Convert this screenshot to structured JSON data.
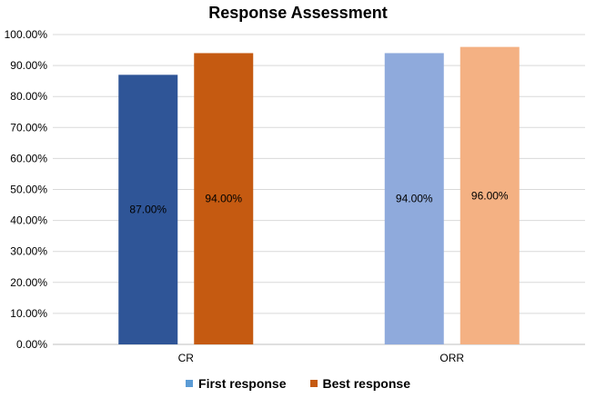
{
  "chart_data": {
    "type": "bar",
    "title": "Response Assessment",
    "categories": [
      "CR",
      "ORR"
    ],
    "series": [
      {
        "name": "First response",
        "values": [
          87.0,
          94.0
        ],
        "colors": [
          "#2F5597",
          "#8FAADC"
        ],
        "legend_color": "#5B9BD5"
      },
      {
        "name": "Best response",
        "values": [
          94.0,
          96.0
        ],
        "colors": [
          "#C55A11",
          "#F4B183"
        ],
        "legend_color": "#C55A11"
      }
    ],
    "ylim": [
      0,
      100
    ],
    "yticks": [
      "0.00%",
      "10.00%",
      "20.00%",
      "30.00%",
      "40.00%",
      "50.00%",
      "60.00%",
      "70.00%",
      "80.00%",
      "90.00%",
      "100.00%"
    ],
    "data_labels": [
      [
        "87.00%",
        "94.00%"
      ],
      [
        "94.00%",
        "96.00%"
      ]
    ],
    "grid": true,
    "legend_position": "bottom"
  }
}
